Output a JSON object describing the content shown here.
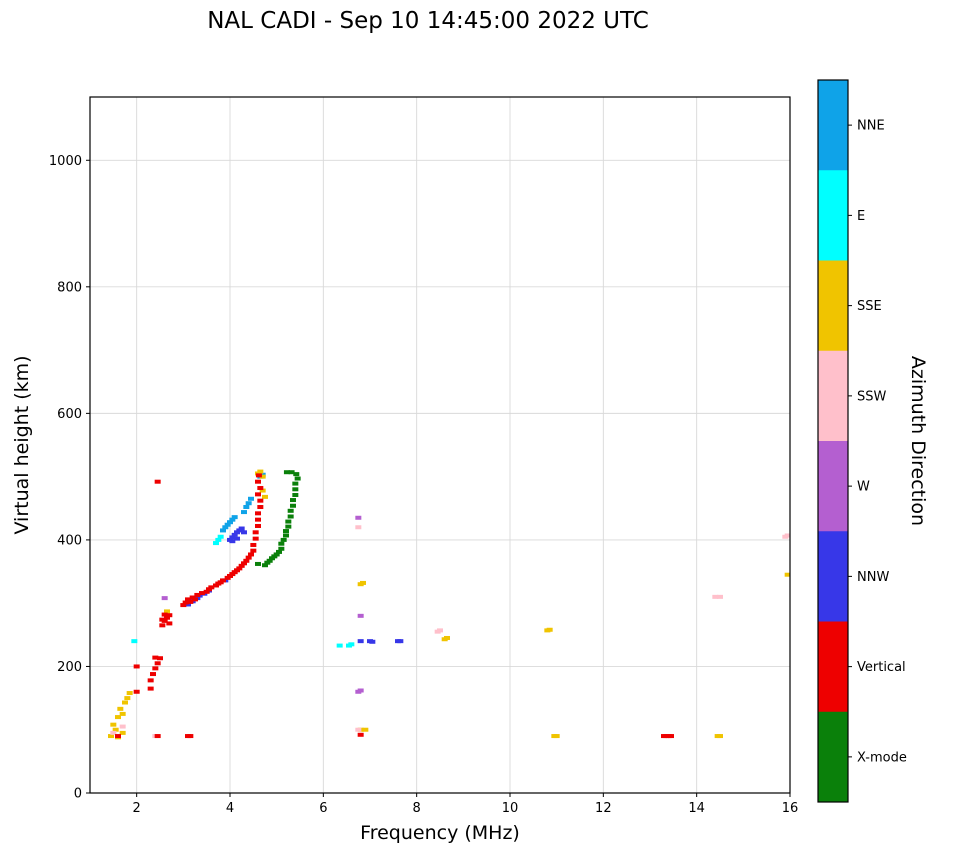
{
  "title": "NAL CADI - Sep 10 14:45:00 2022 UTC",
  "chart_data": {
    "type": "scatter",
    "title": "NAL CADI - Sep 10 14:45:00 2022 UTC",
    "xlabel": "Frequency (MHz)",
    "ylabel": "Virtual height (km)",
    "xlim": [
      1,
      16
    ],
    "ylim": [
      0,
      1100
    ],
    "xticks": [
      2,
      4,
      6,
      8,
      10,
      12,
      14,
      16
    ],
    "yticks": [
      0,
      200,
      400,
      600,
      800,
      1000
    ],
    "grid": true,
    "legend_position": "right-colorbar",
    "colorbar": {
      "label": "Azimuth Direction",
      "categories": [
        {
          "label": "NNE",
          "color": "#0fa3e8"
        },
        {
          "label": "E",
          "color": "#00ffff"
        },
        {
          "label": "SSE",
          "color": "#f0c400"
        },
        {
          "label": "SSW",
          "color": "#ffc0cb"
        },
        {
          "label": "W",
          "color": "#b45fd0"
        },
        {
          "label": "NNW",
          "color": "#3737e8"
        },
        {
          "label": "Vertical",
          "color": "#ee0000"
        },
        {
          "label": "X-mode",
          "color": "#0a800a"
        }
      ]
    },
    "series": [
      {
        "name": "NNE",
        "points": [
          [
            3.85,
            415
          ],
          [
            3.9,
            420
          ],
          [
            3.95,
            424
          ],
          [
            4.0,
            428
          ],
          [
            4.05,
            432
          ],
          [
            4.1,
            436
          ],
          [
            4.3,
            444
          ],
          [
            4.35,
            452
          ],
          [
            4.4,
            458
          ],
          [
            4.45,
            465
          ],
          [
            4.65,
            500
          ],
          [
            4.7,
            503
          ]
        ]
      },
      {
        "name": "E",
        "points": [
          [
            1.95,
            240
          ],
          [
            3.7,
            395
          ],
          [
            3.75,
            400
          ],
          [
            3.8,
            405
          ],
          [
            6.35,
            233
          ],
          [
            6.55,
            233
          ],
          [
            6.6,
            235
          ]
        ]
      },
      {
        "name": "SSE",
        "points": [
          [
            1.45,
            90
          ],
          [
            1.5,
            108
          ],
          [
            1.55,
            100
          ],
          [
            1.6,
            120
          ],
          [
            1.65,
            133
          ],
          [
            1.7,
            125
          ],
          [
            1.75,
            143
          ],
          [
            1.8,
            150
          ],
          [
            1.85,
            158
          ],
          [
            1.6,
            88
          ],
          [
            1.7,
            95
          ],
          [
            2.65,
            287
          ],
          [
            4.6,
            505
          ],
          [
            4.65,
            508
          ],
          [
            4.7,
            500
          ],
          [
            4.7,
            478
          ],
          [
            4.75,
            468
          ],
          [
            6.8,
            330
          ],
          [
            6.85,
            332
          ],
          [
            6.8,
            100
          ],
          [
            6.9,
            100
          ],
          [
            8.6,
            243
          ],
          [
            8.65,
            245
          ],
          [
            10.8,
            257
          ],
          [
            10.85,
            258
          ],
          [
            10.95,
            90
          ],
          [
            11.0,
            90
          ],
          [
            14.45,
            90
          ],
          [
            14.5,
            90
          ],
          [
            15.95,
            345
          ]
        ]
      },
      {
        "name": "SSW",
        "points": [
          [
            1.5,
            95
          ],
          [
            1.7,
            105
          ],
          [
            2.4,
            90
          ],
          [
            6.75,
            420
          ],
          [
            6.75,
            100
          ],
          [
            8.45,
            255
          ],
          [
            8.5,
            257
          ],
          [
            14.4,
            310
          ],
          [
            14.5,
            310
          ],
          [
            15.9,
            405
          ],
          [
            15.95,
            407
          ]
        ]
      },
      {
        "name": "W",
        "points": [
          [
            2.6,
            308
          ],
          [
            6.75,
            435
          ],
          [
            6.8,
            280
          ],
          [
            6.75,
            160
          ],
          [
            6.8,
            162
          ]
        ]
      },
      {
        "name": "NNW",
        "points": [
          [
            3.1,
            298
          ],
          [
            3.2,
            303
          ],
          [
            3.3,
            308
          ],
          [
            3.35,
            312
          ],
          [
            3.45,
            315
          ],
          [
            3.55,
            320
          ],
          [
            3.9,
            336
          ],
          [
            4.0,
            400
          ],
          [
            4.05,
            404
          ],
          [
            4.1,
            408
          ],
          [
            4.15,
            412
          ],
          [
            4.2,
            415
          ],
          [
            4.25,
            418
          ],
          [
            4.3,
            412
          ],
          [
            4.15,
            402
          ],
          [
            4.05,
            398
          ],
          [
            6.8,
            240
          ],
          [
            7.0,
            240
          ],
          [
            7.05,
            239
          ],
          [
            7.6,
            240
          ],
          [
            7.65,
            240
          ]
        ]
      },
      {
        "name": "Vertical",
        "points": [
          [
            1.6,
            90
          ],
          [
            2.0,
            160
          ],
          [
            2.0,
            200
          ],
          [
            2.45,
            90
          ],
          [
            3.1,
            90
          ],
          [
            3.15,
            90
          ],
          [
            2.3,
            165
          ],
          [
            2.3,
            178
          ],
          [
            2.35,
            188
          ],
          [
            2.4,
            197
          ],
          [
            2.45,
            205
          ],
          [
            2.5,
            213
          ],
          [
            2.4,
            214
          ],
          [
            2.55,
            265
          ],
          [
            2.6,
            272
          ],
          [
            2.65,
            277
          ],
          [
            2.7,
            281
          ],
          [
            2.6,
            282
          ],
          [
            2.55,
            274
          ],
          [
            2.7,
            268
          ],
          [
            2.45,
            492
          ],
          [
            3.0,
            297
          ],
          [
            3.05,
            301
          ],
          [
            3.1,
            306
          ],
          [
            3.15,
            302
          ],
          [
            3.2,
            309
          ],
          [
            3.25,
            306
          ],
          [
            3.3,
            313
          ],
          [
            3.4,
            316
          ],
          [
            3.5,
            318
          ],
          [
            3.55,
            322
          ],
          [
            3.6,
            325
          ],
          [
            3.7,
            328
          ],
          [
            3.75,
            331
          ],
          [
            3.8,
            333
          ],
          [
            3.85,
            336
          ],
          [
            3.95,
            340
          ],
          [
            4.0,
            343
          ],
          [
            4.05,
            346
          ],
          [
            4.1,
            349
          ],
          [
            4.15,
            352
          ],
          [
            4.2,
            355
          ],
          [
            4.25,
            359
          ],
          [
            4.3,
            363
          ],
          [
            4.35,
            367
          ],
          [
            4.4,
            372
          ],
          [
            4.45,
            377
          ],
          [
            4.5,
            383
          ],
          [
            4.5,
            392
          ],
          [
            4.55,
            402
          ],
          [
            4.55,
            412
          ],
          [
            4.6,
            422
          ],
          [
            4.6,
            432
          ],
          [
            4.6,
            442
          ],
          [
            4.65,
            452
          ],
          [
            4.65,
            462
          ],
          [
            4.6,
            472
          ],
          [
            4.65,
            482
          ],
          [
            4.6,
            492
          ],
          [
            4.62,
            502
          ],
          [
            6.8,
            92
          ],
          [
            13.3,
            90
          ],
          [
            13.35,
            90
          ],
          [
            13.4,
            90
          ],
          [
            13.45,
            90
          ]
        ]
      },
      {
        "name": "X-mode",
        "points": [
          [
            4.6,
            362
          ],
          [
            4.75,
            360
          ],
          [
            4.8,
            364
          ],
          [
            4.85,
            367
          ],
          [
            4.9,
            371
          ],
          [
            4.95,
            374
          ],
          [
            5.0,
            377
          ],
          [
            5.05,
            381
          ],
          [
            5.1,
            386
          ],
          [
            5.1,
            394
          ],
          [
            5.15,
            400
          ],
          [
            5.2,
            407
          ],
          [
            5.2,
            414
          ],
          [
            5.25,
            421
          ],
          [
            5.25,
            429
          ],
          [
            5.3,
            437
          ],
          [
            5.3,
            446
          ],
          [
            5.35,
            454
          ],
          [
            5.35,
            463
          ],
          [
            5.4,
            471
          ],
          [
            5.4,
            480
          ],
          [
            5.4,
            489
          ],
          [
            5.45,
            497
          ],
          [
            5.42,
            504
          ],
          [
            5.32,
            507
          ],
          [
            5.22,
            507
          ]
        ]
      }
    ]
  }
}
